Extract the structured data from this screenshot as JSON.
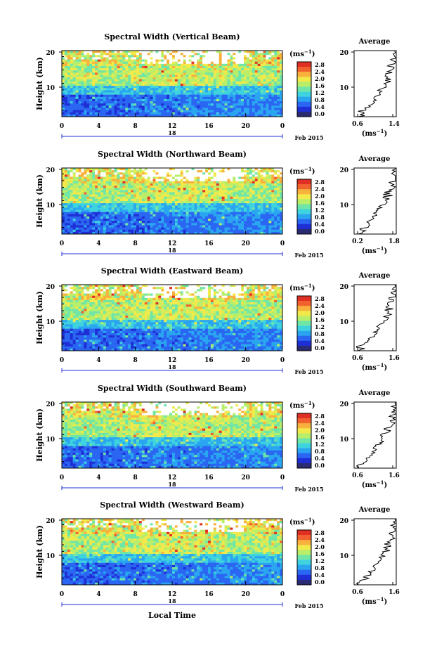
{
  "figure": {
    "xlabel": "Local Time",
    "ylabel": "Height (km)",
    "date_label": "Feb 2015",
    "colorbar_unit": "(ms",
    "colorbar_unit_exp": "−1",
    "colorbar_unit_close": ")",
    "avg_title": "Average",
    "avg_xunit": "(ms",
    "avg_xunit_exp": "−1",
    "avg_xunit_close": ")"
  },
  "colorbar": {
    "ticks": [
      "0.0",
      "0.4",
      "0.8",
      "1.2",
      "1.6",
      "2.0",
      "2.4",
      "2.8"
    ],
    "colors": [
      "#2b2b73",
      "#1f2fd6",
      "#2a66f2",
      "#2aa6f0",
      "#3fd2df",
      "#6fe6a8",
      "#b8ee6a",
      "#f2e94b",
      "#f7b13c",
      "#f2622f",
      "#e03024"
    ]
  },
  "chart_data": [
    {
      "type": "heatmap",
      "title": "Spectral Width (Vertical Beam)",
      "xlabel": "",
      "ylabel": "Height (km)",
      "x_ticks": [
        "0",
        "4",
        "8",
        "12",
        "16",
        "20",
        "0"
      ],
      "y_ticks": [
        "20",
        "10"
      ],
      "day_label": "18",
      "clim": [
        0.0,
        2.8
      ],
      "unit": "ms^-1",
      "average_profile": {
        "title": "Average",
        "x_ticks": [
          "0.6",
          "1.4"
        ],
        "xlim": [
          0.6,
          1.4
        ],
        "y_ticks": [
          "20",
          "10"
        ]
      }
    },
    {
      "type": "heatmap",
      "title": "Spectral Width (Northward Beam)",
      "xlabel": "",
      "ylabel": "Height (km)",
      "x_ticks": [
        "0",
        "4",
        "8",
        "12",
        "16",
        "20",
        "0"
      ],
      "y_ticks": [
        "20",
        "10"
      ],
      "day_label": "18",
      "clim": [
        0.0,
        2.8
      ],
      "unit": "ms^-1",
      "average_profile": {
        "title": "Average",
        "x_ticks": [
          "0.2",
          "1.8"
        ],
        "xlim": [
          0.2,
          1.8
        ],
        "y_ticks": [
          "20",
          "10"
        ]
      }
    },
    {
      "type": "heatmap",
      "title": "Spectral Width (Eastward Beam)",
      "xlabel": "",
      "ylabel": "Height (km)",
      "x_ticks": [
        "0",
        "4",
        "8",
        "12",
        "16",
        "20",
        "0"
      ],
      "y_ticks": [
        "20",
        "10"
      ],
      "day_label": "18",
      "clim": [
        0.0,
        2.8
      ],
      "unit": "ms^-1",
      "average_profile": {
        "title": "Average",
        "x_ticks": [
          "0.6",
          "1.6"
        ],
        "xlim": [
          0.6,
          1.6
        ],
        "y_ticks": [
          "20",
          "10"
        ]
      }
    },
    {
      "type": "heatmap",
      "title": "Spectral Width (Southward Beam)",
      "xlabel": "",
      "ylabel": "Height (km)",
      "x_ticks": [
        "0",
        "4",
        "8",
        "12",
        "16",
        "20",
        "0"
      ],
      "y_ticks": [
        "20",
        "10"
      ],
      "day_label": "18",
      "clim": [
        0.0,
        2.8
      ],
      "unit": "ms^-1",
      "average_profile": {
        "title": "Average",
        "x_ticks": [
          "0.6",
          "1.6"
        ],
        "xlim": [
          0.6,
          1.6
        ],
        "y_ticks": [
          "20",
          "10"
        ]
      }
    },
    {
      "type": "heatmap",
      "title": "Spectral Width (Westward Beam)",
      "xlabel": "Local Time",
      "ylabel": "Height (km)",
      "x_ticks": [
        "0",
        "4",
        "8",
        "12",
        "16",
        "20",
        "0"
      ],
      "y_ticks": [
        "20",
        "10"
      ],
      "day_label": "18",
      "clim": [
        0.0,
        2.8
      ],
      "unit": "ms^-1",
      "average_profile": {
        "title": "Average",
        "x_ticks": [
          "0.6",
          "1.6"
        ],
        "xlim": [
          0.6,
          1.6
        ],
        "y_ticks": [
          "20",
          "10"
        ]
      }
    }
  ]
}
